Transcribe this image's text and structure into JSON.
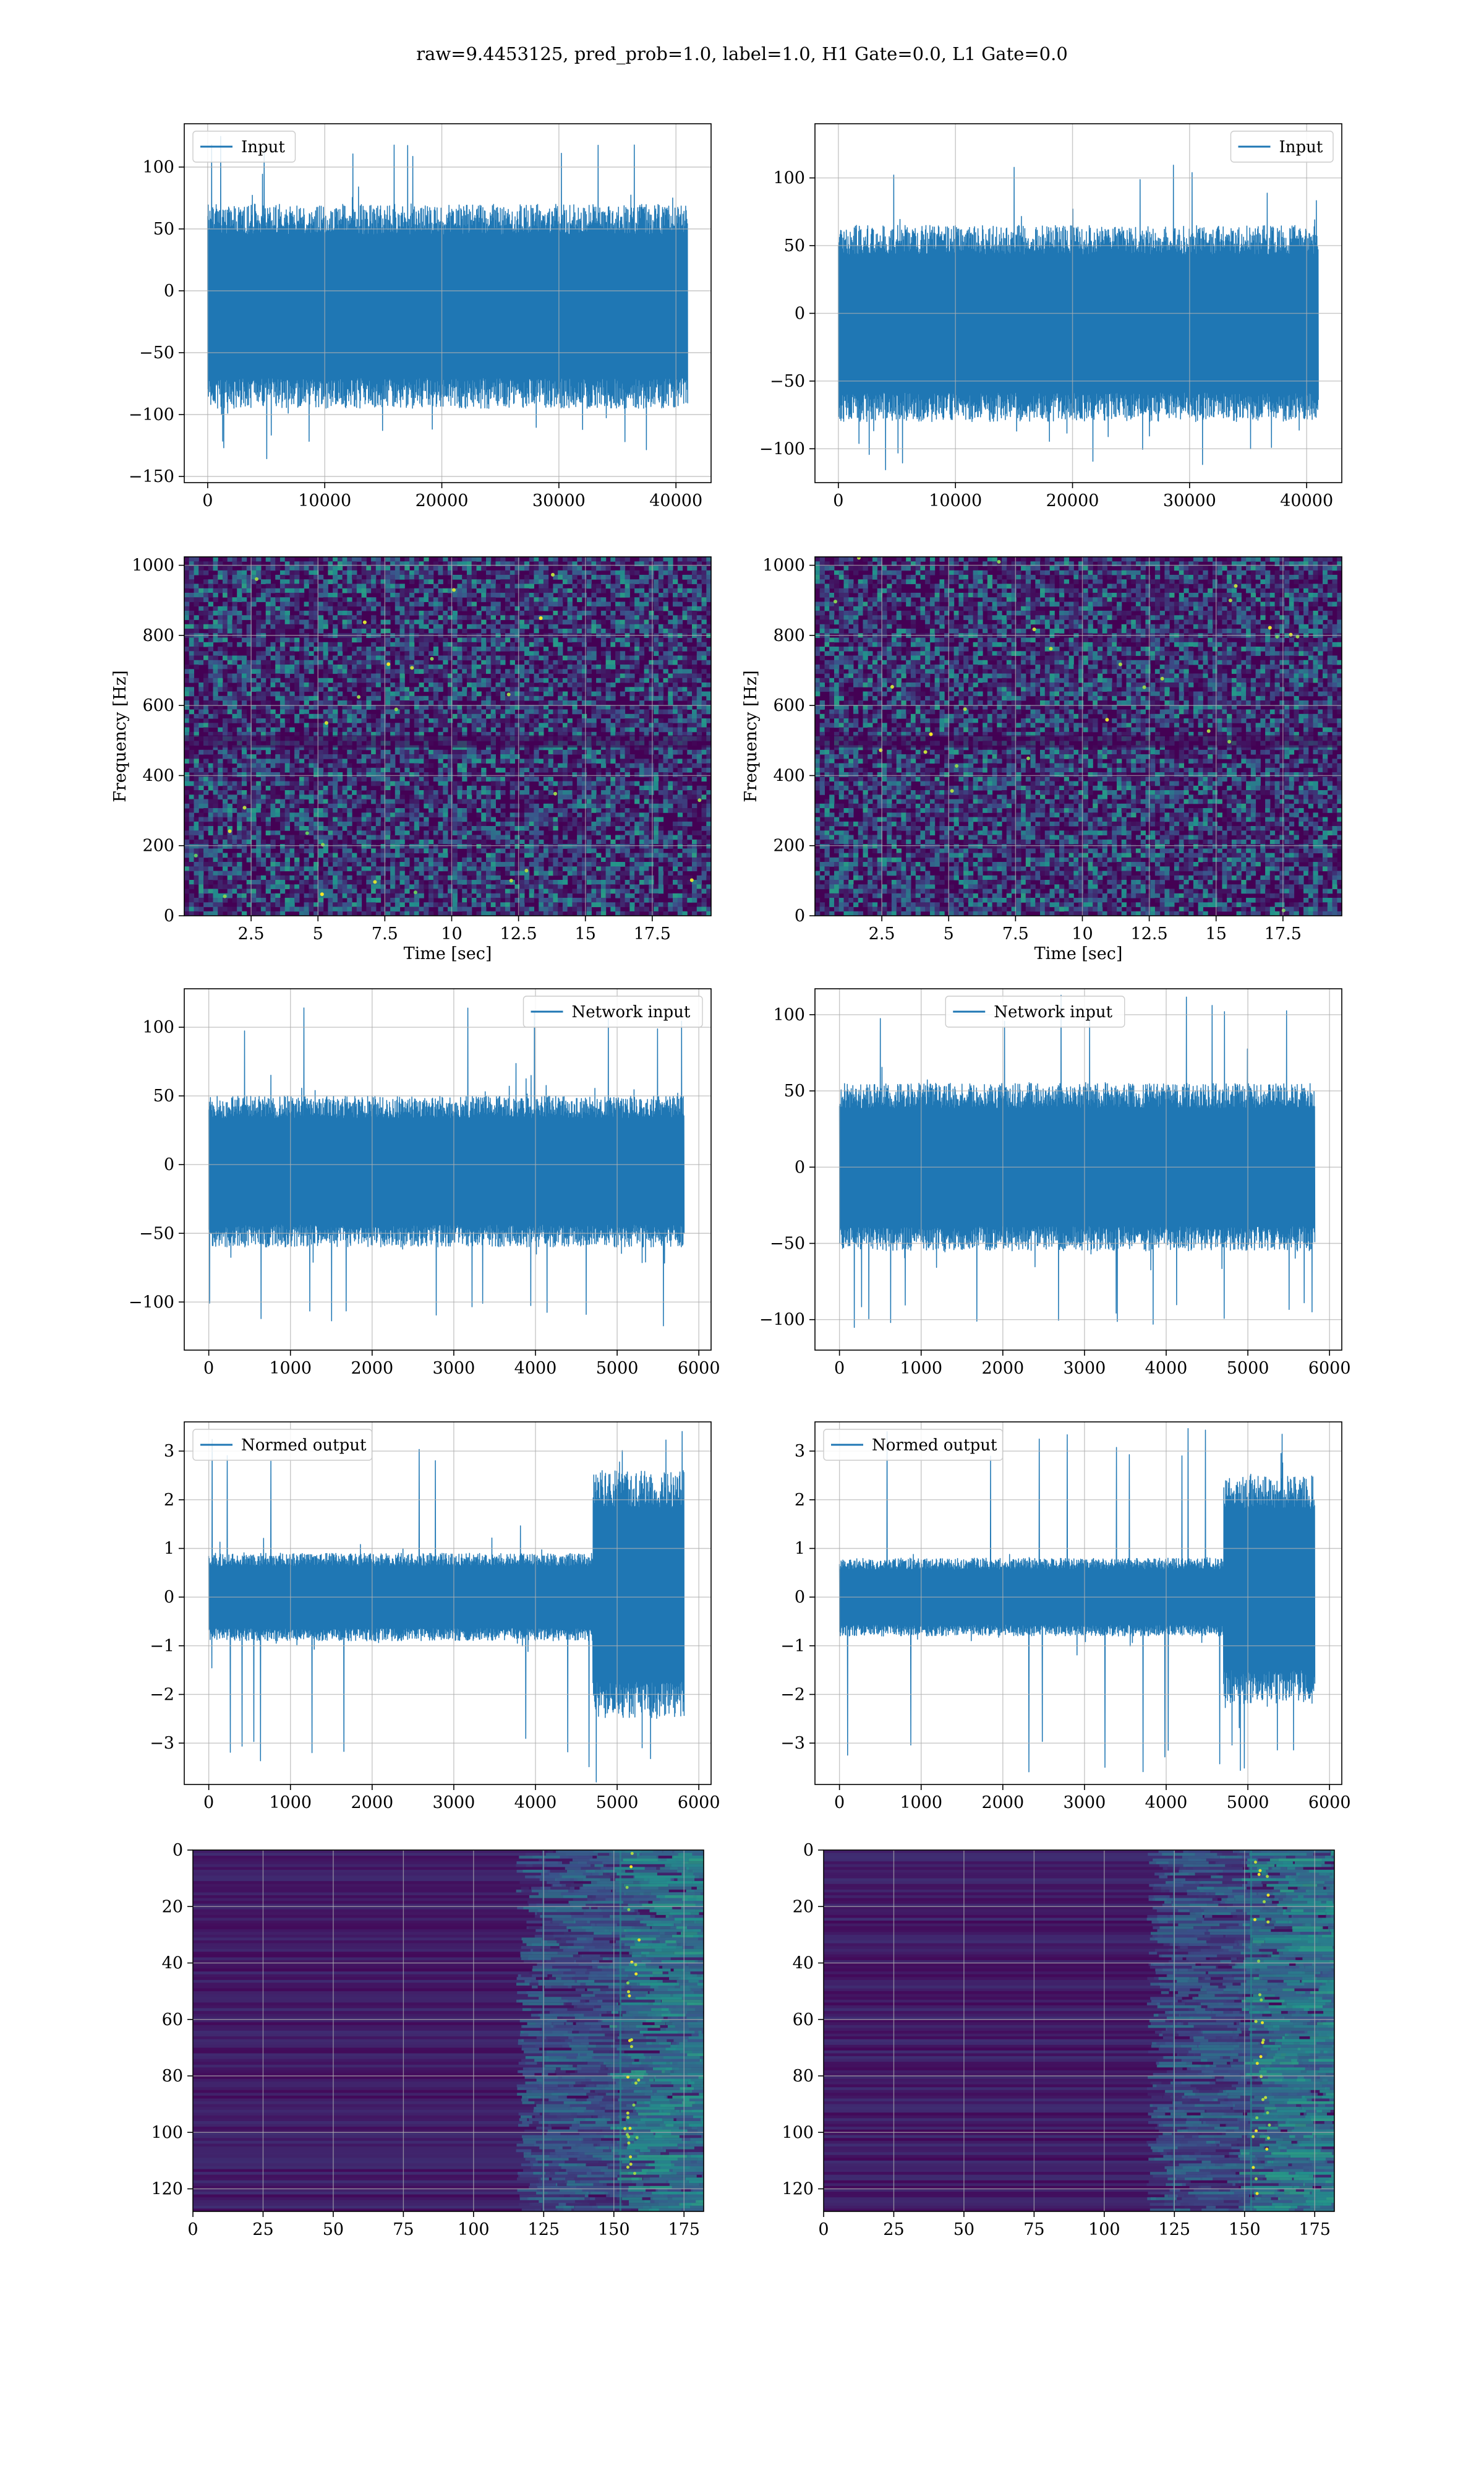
{
  "suptitle": "raw=9.4453125, pred_prob=1.0, label=1.0, H1 Gate=0.0, L1 Gate=0.0",
  "colors": {
    "line": "#1f77b4",
    "grid": "#b0b0b0",
    "viridis_low": "#440154",
    "viridis_mid": "#21918c",
    "viridis_high": "#fde725"
  },
  "chart_data": [
    {
      "id": "input-left",
      "type": "line",
      "legend": "Input",
      "legend_loc": "upper-left",
      "xlim": [
        -2000,
        43000
      ],
      "ylim": [
        -155,
        135
      ],
      "xticks": [
        0,
        10000,
        20000,
        30000,
        40000
      ],
      "yticks": [
        -150,
        -100,
        -50,
        0,
        50,
        100
      ],
      "series": [
        {
          "n": 41000,
          "x_range": [
            0,
            41000
          ],
          "envelope": [
            -95,
            70
          ],
          "peaks": [
            125,
            -142
          ]
        }
      ]
    },
    {
      "id": "input-right",
      "type": "line",
      "legend": "Input",
      "legend_loc": "upper-right",
      "xlim": [
        -2000,
        43000
      ],
      "ylim": [
        -125,
        140
      ],
      "xticks": [
        0,
        10000,
        20000,
        30000,
        40000
      ],
      "yticks": [
        -100,
        -50,
        0,
        50,
        100
      ],
      "series": [
        {
          "n": 41000,
          "x_range": [
            0,
            41000
          ],
          "envelope": [
            -80,
            65
          ],
          "peaks": [
            110,
            -118
          ]
        }
      ]
    },
    {
      "id": "spectrogram-left",
      "type": "heatmap",
      "xlabel": "Time [sec]",
      "ylabel": "Frequency [Hz]",
      "xlim": [
        0,
        19.7
      ],
      "ylim": [
        0,
        1024
      ],
      "xticks": [
        2.5,
        5.0,
        7.5,
        10.0,
        12.5,
        15.0,
        17.5
      ],
      "yticks": [
        0,
        200,
        400,
        600,
        800,
        1000
      ],
      "colormap": "viridis"
    },
    {
      "id": "spectrogram-right",
      "type": "heatmap",
      "xlabel": "Time [sec]",
      "ylabel": "Frequency [Hz]",
      "xlim": [
        0,
        19.7
      ],
      "ylim": [
        0,
        1024
      ],
      "xticks": [
        2.5,
        5.0,
        7.5,
        10.0,
        12.5,
        15.0,
        17.5
      ],
      "yticks": [
        0,
        200,
        400,
        600,
        800,
        1000
      ],
      "colormap": "viridis"
    },
    {
      "id": "network-input-left",
      "type": "line",
      "legend": "Network input",
      "legend_loc": "upper-right",
      "xlim": [
        -300,
        6150
      ],
      "ylim": [
        -135,
        128
      ],
      "xticks": [
        0,
        1000,
        2000,
        3000,
        4000,
        5000,
        6000
      ],
      "yticks": [
        -100,
        -50,
        0,
        50,
        100
      ],
      "series": [
        {
          "n": 5820,
          "x_range": [
            0,
            5820
          ],
          "envelope": [
            -60,
            50
          ],
          "peaks": [
            115,
            -122
          ]
        }
      ]
    },
    {
      "id": "network-input-right",
      "type": "line",
      "legend": "Network input",
      "legend_loc": "upper-center",
      "xlim": [
        -300,
        6150
      ],
      "ylim": [
        -120,
        117
      ],
      "xticks": [
        0,
        1000,
        2000,
        3000,
        4000,
        5000,
        6000
      ],
      "yticks": [
        -100,
        -50,
        0,
        50,
        100
      ],
      "series": [
        {
          "n": 5820,
          "x_range": [
            0,
            5820
          ],
          "envelope": [
            -55,
            55
          ],
          "peaks": [
            113,
            -108
          ]
        }
      ]
    },
    {
      "id": "normed-output-left",
      "type": "line",
      "legend": "Normed output",
      "legend_loc": "upper-left",
      "xlim": [
        -300,
        6150
      ],
      "ylim": [
        -3.85,
        3.6
      ],
      "xticks": [
        0,
        1000,
        2000,
        3000,
        4000,
        5000,
        6000
      ],
      "yticks": [
        -3,
        -2,
        -1,
        0,
        1,
        2,
        3
      ],
      "series": [
        {
          "n": 5820,
          "x_range": [
            0,
            5820
          ],
          "envelope": [
            -0.9,
            0.9
          ],
          "burst_x": [
            4700,
            5820
          ],
          "burst_env": [
            -2.5,
            2.6
          ],
          "peaks": [
            3.3,
            -3.5
          ]
        }
      ]
    },
    {
      "id": "normed-output-right",
      "type": "line",
      "legend": "Normed output",
      "legend_loc": "upper-left",
      "xlim": [
        -300,
        6150
      ],
      "ylim": [
        -3.85,
        3.6
      ],
      "xticks": [
        0,
        1000,
        2000,
        3000,
        4000,
        5000,
        6000
      ],
      "yticks": [
        -3,
        -2,
        -1,
        0,
        1,
        2,
        3
      ],
      "series": [
        {
          "n": 5820,
          "x_range": [
            0,
            5820
          ],
          "envelope": [
            -0.8,
            0.8
          ],
          "burst_x": [
            4700,
            5820
          ],
          "burst_env": [
            -2.2,
            2.5
          ],
          "peaks": [
            3.5,
            -3.6
          ]
        }
      ]
    },
    {
      "id": "feature-map-left",
      "type": "heatmap",
      "xlim": [
        0,
        182
      ],
      "ylim": [
        128,
        0
      ],
      "xticks": [
        0,
        25,
        50,
        75,
        100,
        125,
        150,
        175
      ],
      "yticks": [
        0,
        20,
        40,
        60,
        80,
        100,
        120
      ],
      "colormap": "viridis"
    },
    {
      "id": "feature-map-right",
      "type": "heatmap",
      "xlim": [
        0,
        182
      ],
      "ylim": [
        128,
        0
      ],
      "xticks": [
        0,
        25,
        50,
        75,
        100,
        125,
        150,
        175
      ],
      "yticks": [
        0,
        20,
        40,
        60,
        80,
        100,
        120
      ],
      "colormap": "viridis"
    }
  ]
}
